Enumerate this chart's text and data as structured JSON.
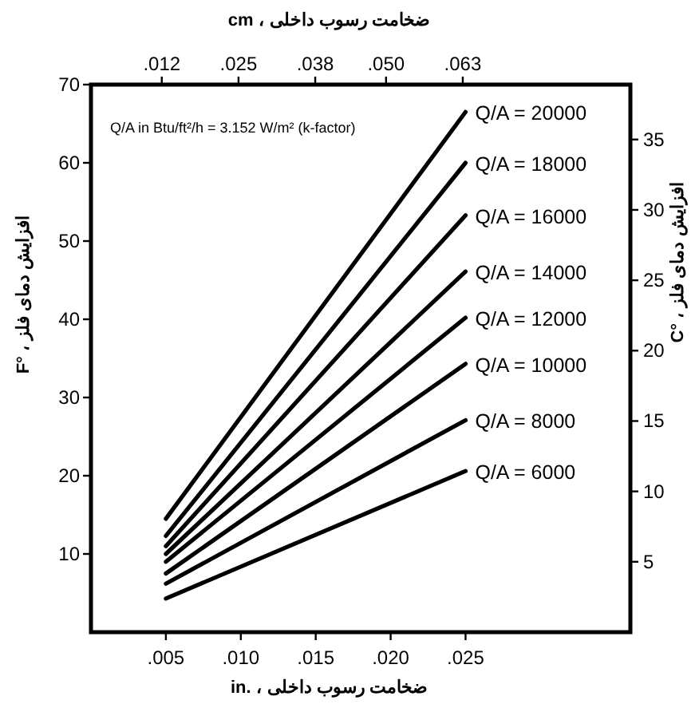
{
  "chart_data": {
    "type": "line",
    "x": [
      0.005,
      0.025
    ],
    "series": [
      {
        "name": "Q/A = 20000",
        "color": "#000000",
        "values": [
          14.5,
          66.5
        ]
      },
      {
        "name": "Q/A = 18000",
        "color": "#000000",
        "values": [
          12.3,
          60
        ]
      },
      {
        "name": "Q/A = 16000",
        "color": "#000000",
        "values": [
          11,
          53.3
        ]
      },
      {
        "name": "Q/A = 14000",
        "color": "#000000",
        "values": [
          10,
          46.1
        ]
      },
      {
        "name": "Q/A = 12000",
        "color": "#000000",
        "values": [
          9,
          40.2
        ]
      },
      {
        "name": "Q/A = 10000",
        "color": "#000000",
        "values": [
          7.5,
          34.3
        ]
      },
      {
        "name": "Q/A = 8000",
        "color": "#000000",
        "values": [
          6.2,
          27.1
        ]
      },
      {
        "name": "Q/A = 6000",
        "color": "#000000",
        "values": [
          4.3,
          20.6
        ]
      }
    ],
    "xlim": [
      0,
      0.036
    ],
    "xticks": [
      {
        "value": 0.005,
        "label": ".005"
      },
      {
        "value": 0.01,
        "label": ".010"
      },
      {
        "value": 0.015,
        "label": ".015"
      },
      {
        "value": 0.02,
        "label": ".020"
      },
      {
        "value": 0.025,
        "label": ".025"
      }
    ],
    "x2lim": [
      0,
      0.0914
    ],
    "x2ticks": [
      {
        "value": 0.012,
        "label": ".012"
      },
      {
        "value": 0.025,
        "label": ".025"
      },
      {
        "value": 0.038,
        "label": ".038"
      },
      {
        "value": 0.05,
        "label": ".050"
      },
      {
        "value": 0.063,
        "label": ".063"
      }
    ],
    "ylim": [
      0,
      70
    ],
    "yticks": [
      10,
      20,
      30,
      40,
      50,
      60,
      70
    ],
    "y2lim": [
      0,
      38.9
    ],
    "y2ticks": [
      5,
      10,
      15,
      20,
      25,
      30,
      35
    ],
    "xlabel": "ضخامت رسوب داخلی ، in.",
    "x2label": "ضخامت رسوب داخلی ، cm",
    "ylabel": "افزایش دمای فلز ، °F",
    "y2label": "افزایش دمای فلز ، °C",
    "annotations": [
      "Q/A in Btu/ft²/h = 3.152 W/m² (k-factor)"
    ],
    "legend": false,
    "grid": false,
    "marker": "none",
    "line_style": "solid"
  }
}
